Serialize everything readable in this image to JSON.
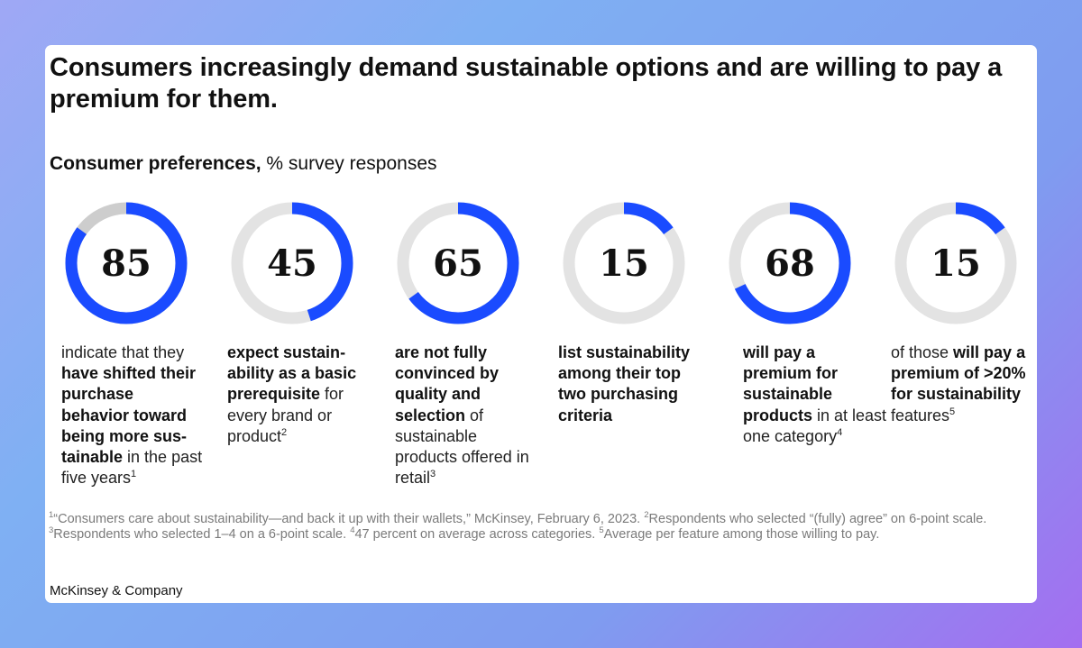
{
  "title": "Consumers increasingly demand sustainable options and are willing to pay a premium for them.",
  "subtitle_bold": "Consumer preferences,",
  "subtitle_rest": " % survey responses",
  "colors": {
    "accent": "#1a4bff",
    "track": "#e3e3e3",
    "track_alt": "#cdcdcd"
  },
  "chart_data": {
    "type": "pie",
    "title": "Consumer preferences, % survey responses",
    "max": 100,
    "rings": [
      {
        "value": 85,
        "label": "85",
        "description": [
          {
            "t": "indicate that they ",
            "b": false
          },
          {
            "t": "have shifted their purchase behavior toward being more sus­tainable",
            "b": true
          },
          {
            "t": " in the past five years",
            "b": false
          }
        ],
        "sup": "1"
      },
      {
        "value": 45,
        "label": "45",
        "description": [
          {
            "t": "expect sustain­ability as a basic prerequisite",
            "b": true
          },
          {
            "t": " for every brand or product",
            "b": false
          }
        ],
        "sup": "2"
      },
      {
        "value": 65,
        "label": "65",
        "description": [
          {
            "t": "are not fully convinced by quality and selection",
            "b": true
          },
          {
            "t": " of sustainable products offered in retail",
            "b": false
          }
        ],
        "sup": "3"
      },
      {
        "value": 15,
        "label": "15",
        "description": [
          {
            "t": "list sustainability among their top two purchasing criteria",
            "b": true
          }
        ],
        "sup": ""
      },
      {
        "value": 68,
        "label": "68",
        "description": [
          {
            "t": "will pay a premium for sustainable products",
            "b": true
          },
          {
            "t": " in at least one category",
            "b": false
          }
        ],
        "sup": "4"
      },
      {
        "value": 15,
        "label": "15",
        "description": [
          {
            "t": "of those ",
            "b": false
          },
          {
            "t": "will pay a premium of >20% for sustainability",
            "b": true
          },
          {
            "t": " features",
            "b": false
          }
        ],
        "sup": "5"
      }
    ]
  },
  "footnotes": [
    {
      "sup": "1",
      "text": "“Consumers care about sustainability—and back it up with their wallets,” McKinsey, February 6, 2023. "
    },
    {
      "sup": "2",
      "text": "Respondents who selected “(fully) agree” on 6-point scale. "
    },
    {
      "sup": "3",
      "text": "Respondents who selected 1–4 on a 6-point scale. "
    },
    {
      "sup": "4",
      "text": "47 percent on average across categories. "
    },
    {
      "sup": "5",
      "text": "Average per feature among those willing to pay."
    }
  ],
  "brand": "McKinsey & Company"
}
